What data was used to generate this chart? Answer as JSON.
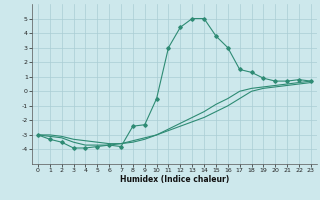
{
  "x": [
    0,
    1,
    2,
    3,
    4,
    5,
    6,
    7,
    8,
    9,
    10,
    11,
    12,
    13,
    14,
    15,
    16,
    17,
    18,
    19,
    20,
    21,
    22,
    23
  ],
  "line1": [
    -3.0,
    -3.3,
    -3.5,
    -3.9,
    -3.9,
    -3.8,
    -3.7,
    -3.8,
    -2.4,
    -2.3,
    -0.5,
    3.0,
    4.4,
    5.0,
    5.0,
    3.8,
    3.0,
    1.5,
    1.3,
    0.9,
    0.7,
    0.7,
    0.8,
    0.7
  ],
  "line2": [
    -3.0,
    -3.1,
    -3.2,
    -3.5,
    -3.7,
    -3.7,
    -3.7,
    -3.6,
    -3.4,
    -3.2,
    -3.0,
    -2.7,
    -2.4,
    -2.1,
    -1.8,
    -1.4,
    -1.0,
    -0.5,
    0.0,
    0.2,
    0.3,
    0.4,
    0.5,
    0.6
  ],
  "line3": [
    -3.0,
    -3.0,
    -3.1,
    -3.3,
    -3.4,
    -3.5,
    -3.6,
    -3.6,
    -3.5,
    -3.3,
    -3.0,
    -2.6,
    -2.2,
    -1.8,
    -1.4,
    -0.9,
    -0.5,
    0.0,
    0.2,
    0.3,
    0.4,
    0.5,
    0.6,
    0.7
  ],
  "color": "#2e8b74",
  "bg_color": "#cde8ec",
  "grid_color": "#aacdd4",
  "xlabel": "Humidex (Indice chaleur)",
  "ylim": [
    -5,
    6
  ],
  "xlim": [
    -0.5,
    23.5
  ],
  "yticks": [
    -4,
    -3,
    -2,
    -1,
    0,
    1,
    2,
    3,
    4,
    5
  ],
  "xticks": [
    0,
    1,
    2,
    3,
    4,
    5,
    6,
    7,
    8,
    9,
    10,
    11,
    12,
    13,
    14,
    15,
    16,
    17,
    18,
    19,
    20,
    21,
    22,
    23
  ]
}
